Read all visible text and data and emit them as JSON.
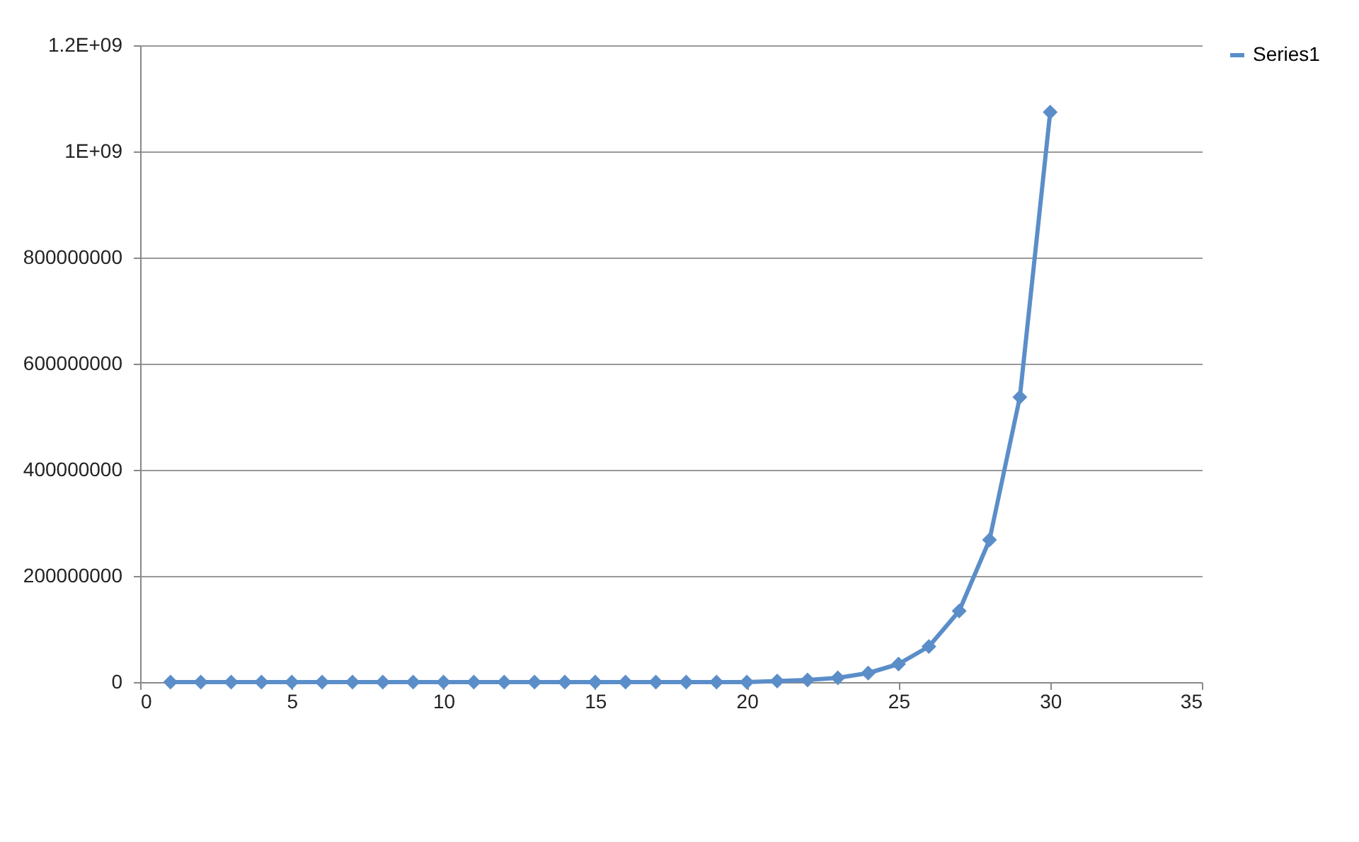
{
  "chart_data": {
    "type": "line",
    "x": [
      1,
      2,
      3,
      4,
      5,
      6,
      7,
      8,
      9,
      10,
      11,
      12,
      13,
      14,
      15,
      16,
      17,
      18,
      19,
      20,
      21,
      22,
      23,
      24,
      25,
      26,
      27,
      28,
      29,
      30
    ],
    "series": [
      {
        "name": "Series1",
        "color": "#5b8ec9",
        "values": [
          0,
          0,
          0,
          0,
          0,
          0,
          0,
          0,
          0,
          0,
          0,
          0,
          0,
          0,
          0,
          0,
          0,
          0,
          0,
          0,
          2000000,
          4000000,
          8000000,
          17000000,
          34000000,
          67000000,
          134000000,
          268000000,
          537000000,
          1074000000
        ]
      }
    ],
    "xlim": [
      0,
      35
    ],
    "xticks": [
      0,
      5,
      10,
      15,
      20,
      25,
      30,
      35
    ],
    "ylim": [
      0,
      1200000000
    ],
    "yticks": [
      0,
      200000000,
      400000000,
      600000000,
      800000000,
      {
        "value": 1000000000,
        "label": "1E+09"
      },
      {
        "value": 1200000000,
        "label": "1.2E+09"
      }
    ],
    "grid": "y",
    "legend": "right",
    "marker": "diamond",
    "line_style": "solid"
  }
}
